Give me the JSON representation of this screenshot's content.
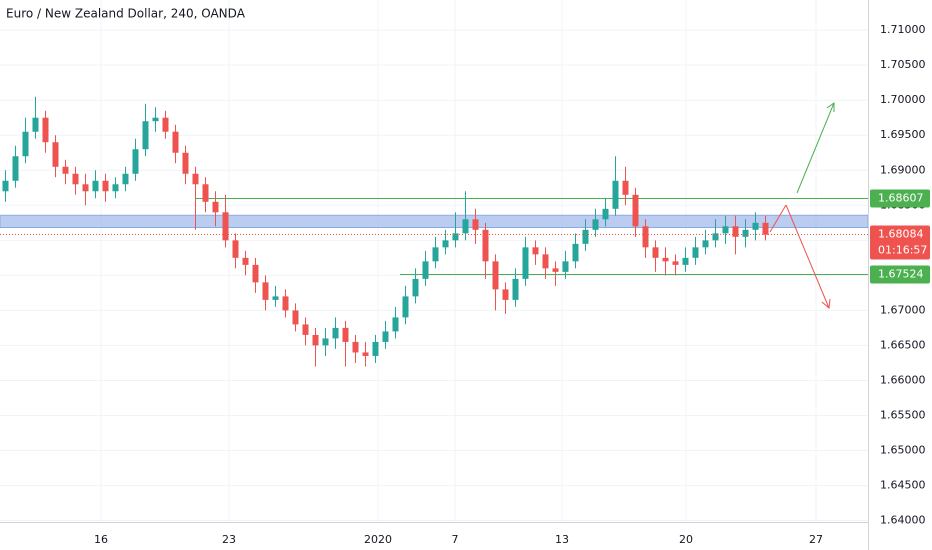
{
  "chart_data": {
    "type": "candlestick",
    "title": "Euro / New Zealand Dollar, 240, OANDA",
    "up_color": "#26a69a",
    "down_color": "#ef5350",
    "grid": true,
    "open": [
      1.687,
      1.6885,
      1.692,
      1.6955,
      1.6975,
      1.694,
      1.6905,
      1.6895,
      1.688,
      1.687,
      1.6885,
      1.687,
      1.688,
      1.6895,
      1.693,
      1.697,
      1.6975,
      1.6955,
      1.6925,
      1.6895,
      1.688,
      1.6855,
      1.684,
      1.68,
      1.6775,
      1.6765,
      1.674,
      1.6715,
      1.672,
      1.67,
      1.668,
      1.6665,
      1.665,
      1.666,
      1.6675,
      1.6655,
      1.664,
      1.6635,
      1.6655,
      1.667,
      1.669,
      1.672,
      1.6745,
      1.677,
      1.679,
      1.68,
      1.681,
      1.683,
      1.6815,
      1.677,
      1.673,
      1.6715,
      1.6745,
      1.679,
      1.678,
      1.676,
      1.6755,
      1.677,
      1.6795,
      1.6815,
      1.683,
      1.6845,
      1.6885,
      1.6865,
      1.682,
      1.679,
      1.6775,
      1.677,
      1.6765,
      1.6775,
      1.679,
      1.68,
      1.681,
      1.682,
      1.6805,
      1.6815,
      1.6825
    ],
    "high": [
      1.69,
      1.6935,
      1.6975,
      1.7005,
      1.6985,
      1.695,
      1.6915,
      1.6905,
      1.6895,
      1.69,
      1.6895,
      1.689,
      1.6905,
      1.6945,
      1.6995,
      1.699,
      1.6985,
      1.6965,
      1.6935,
      1.6905,
      1.689,
      1.687,
      1.6865,
      1.681,
      1.6785,
      1.6775,
      1.675,
      1.6735,
      1.673,
      1.671,
      1.669,
      1.6675,
      1.6675,
      1.669,
      1.6685,
      1.6665,
      1.6655,
      1.6665,
      1.6685,
      1.6705,
      1.6735,
      1.676,
      1.6785,
      1.6805,
      1.6815,
      1.684,
      1.687,
      1.6845,
      1.6825,
      1.678,
      1.674,
      1.676,
      1.6805,
      1.68,
      1.679,
      1.677,
      1.6785,
      1.681,
      1.683,
      1.6845,
      1.686,
      1.692,
      1.6905,
      1.6875,
      1.683,
      1.68,
      1.679,
      1.678,
      1.679,
      1.6805,
      1.6815,
      1.683,
      1.6835,
      1.6835,
      1.683,
      1.684,
      1.6835
    ],
    "low": [
      1.6855,
      1.6875,
      1.691,
      1.6945,
      1.6925,
      1.689,
      1.688,
      1.6865,
      1.685,
      1.686,
      1.6855,
      1.686,
      1.687,
      1.6885,
      1.692,
      1.6955,
      1.6945,
      1.691,
      1.688,
      1.6815,
      1.684,
      1.682,
      1.679,
      1.676,
      1.675,
      1.6725,
      1.67,
      1.6705,
      1.669,
      1.667,
      1.665,
      1.662,
      1.6635,
      1.6645,
      1.662,
      1.6625,
      1.662,
      1.6625,
      1.6645,
      1.666,
      1.668,
      1.671,
      1.6735,
      1.676,
      1.678,
      1.679,
      1.68,
      1.6795,
      1.6745,
      1.67,
      1.6695,
      1.6705,
      1.6735,
      1.6765,
      1.6745,
      1.6735,
      1.6745,
      1.676,
      1.6785,
      1.6805,
      1.682,
      1.6835,
      1.685,
      1.6805,
      1.6775,
      1.6755,
      1.675,
      1.675,
      1.6755,
      1.6765,
      1.678,
      1.679,
      1.6795,
      1.678,
      1.679,
      1.68,
      1.68
    ],
    "close": [
      1.6885,
      1.692,
      1.6955,
      1.6975,
      1.694,
      1.6905,
      1.6895,
      1.688,
      1.687,
      1.6885,
      1.687,
      1.688,
      1.6895,
      1.693,
      1.697,
      1.6975,
      1.6955,
      1.6925,
      1.6895,
      1.688,
      1.6855,
      1.684,
      1.68,
      1.6775,
      1.6765,
      1.674,
      1.6715,
      1.672,
      1.67,
      1.668,
      1.6665,
      1.665,
      1.666,
      1.6675,
      1.6655,
      1.664,
      1.6635,
      1.6655,
      1.667,
      1.669,
      1.672,
      1.6745,
      1.677,
      1.679,
      1.68,
      1.681,
      1.683,
      1.6815,
      1.677,
      1.673,
      1.6715,
      1.6745,
      1.679,
      1.678,
      1.676,
      1.6755,
      1.677,
      1.6795,
      1.6815,
      1.683,
      1.6845,
      1.6885,
      1.6865,
      1.682,
      1.679,
      1.6775,
      1.677,
      1.6765,
      1.6775,
      1.679,
      1.68,
      1.681,
      1.682,
      1.6805,
      1.6815,
      1.6825,
      1.6808
    ],
    "xlim": [
      -0.5,
      86.3
    ],
    "xticks": [
      {
        "value": 9.6,
        "label": "16"
      },
      {
        "value": 22.4,
        "label": "23"
      },
      {
        "value": 37.3,
        "label": "2020"
      },
      {
        "value": 45,
        "label": "7"
      },
      {
        "value": 55.7,
        "label": "13"
      },
      {
        "value": 68.1,
        "label": "20"
      },
      {
        "value": 81.1,
        "label": "27"
      }
    ],
    "ylim": [
      1.6398,
      1.7143
    ],
    "yticks": [
      {
        "value": 1.64,
        "label": "1.64000"
      },
      {
        "value": 1.645,
        "label": "1.64500"
      },
      {
        "value": 1.65,
        "label": "1.65000"
      },
      {
        "value": 1.655,
        "label": "1.65500"
      },
      {
        "value": 1.66,
        "label": "1.66000"
      },
      {
        "value": 1.665,
        "label": "1.66500"
      },
      {
        "value": 1.67,
        "label": "1.67000"
      },
      {
        "value": 1.675,
        "label": "1.67500"
      },
      {
        "value": 1.68,
        "label": "1.68000"
      },
      {
        "value": 1.685,
        "label": "1.68500"
      },
      {
        "value": 1.69,
        "label": "1.69000"
      },
      {
        "value": 1.695,
        "label": "1.69500"
      },
      {
        "value": 1.7,
        "label": "1.70000"
      },
      {
        "value": 1.705,
        "label": "1.70500"
      },
      {
        "value": 1.71,
        "label": "1.71000"
      }
    ],
    "zone": [
      1.6818,
      1.6836
    ],
    "zone_color": "#9db6e8",
    "levels": [
      {
        "value": 1.68607,
        "color": "#4caf50"
      },
      {
        "value": 1.67524,
        "color": "#4caf50"
      }
    ],
    "last_price": 1.68084,
    "last_color": "#ef5350",
    "countdown": "01:16:57"
  }
}
